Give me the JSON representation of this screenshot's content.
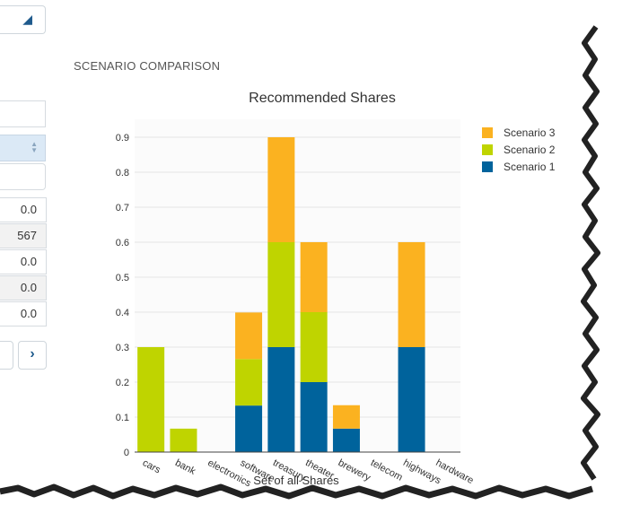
{
  "section": {
    "title": "SCENARIO COMPARISON"
  },
  "left_panel": {
    "values": [
      "0.0",
      "567",
      "0.0",
      "0.0",
      "0.0"
    ]
  },
  "chart_data": {
    "type": "bar",
    "stacked": true,
    "title": "Recommended Shares",
    "xlabel": "Set of all Shares",
    "ylabel": "",
    "ylim": [
      0,
      0.9
    ],
    "yticks": [
      0,
      0.1,
      0.2,
      0.3,
      0.4,
      0.5,
      0.6,
      0.7,
      0.8,
      0.9
    ],
    "yticklabels": [
      "0",
      "0.1",
      "0.2",
      "0.3",
      "0.4",
      "0.5",
      "0.6",
      "0.7",
      "0.8",
      "0.9"
    ],
    "categories": [
      "cars",
      "bank",
      "electronics",
      "software",
      "treasury",
      "theater",
      "brewery",
      "telecom",
      "highways",
      "hardware"
    ],
    "legend_position": "right",
    "series": [
      {
        "name": "Scenario 1",
        "color": "#00639c",
        "values": [
          0,
          0,
          0,
          0.133,
          0.3,
          0.2,
          0.067,
          0,
          0.3,
          0
        ]
      },
      {
        "name": "Scenario 2",
        "color": "#bfd400",
        "values": [
          0.3,
          0.067,
          0,
          0.133,
          0.3,
          0.2,
          0,
          0,
          0,
          0
        ]
      },
      {
        "name": "Scenario 3",
        "color": "#fbb220",
        "values": [
          0,
          0,
          0,
          0.133,
          0.3,
          0.2,
          0.067,
          0,
          0.3,
          0
        ]
      }
    ]
  }
}
